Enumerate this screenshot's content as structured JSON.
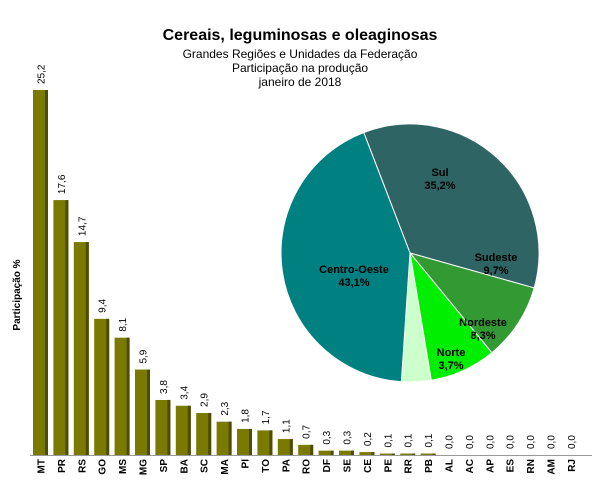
{
  "chart_data": [
    {
      "type": "bar",
      "title": "Cereais, leguminosas e oleaginosas",
      "subtitle": [
        "Grandes Regiões e Unidades da Federação",
        "Participação na produção",
        "janeiro de 2018"
      ],
      "ylabel": "Participação %",
      "xlabel": "",
      "ylim": [
        0,
        25.2
      ],
      "grid": false,
      "color": "#7a7a00",
      "categories": [
        "MT",
        "PR",
        "RS",
        "GO",
        "MS",
        "MG",
        "SP",
        "BA",
        "SC",
        "MA",
        "PI",
        "TO",
        "PA",
        "RO",
        "DF",
        "SE",
        "CE",
        "PE",
        "RR",
        "PB",
        "AL",
        "AC",
        "AP",
        "ES",
        "RN",
        "AM",
        "RJ"
      ],
      "values": [
        25.2,
        17.6,
        14.7,
        9.4,
        8.1,
        5.9,
        3.8,
        3.4,
        2.9,
        2.3,
        1.8,
        1.7,
        1.1,
        0.7,
        0.3,
        0.3,
        0.2,
        0.1,
        0.1,
        0.1,
        0.0,
        0.0,
        0.0,
        0.0,
        0.0,
        0.0,
        0.0
      ],
      "value_labels": [
        "25,2",
        "17,6",
        "14,7",
        "9,4",
        "8,1",
        "5,9",
        "3,8",
        "3,4",
        "2,9",
        "2,3",
        "1,8",
        "1,7",
        "1,1",
        "0,7",
        "0,3",
        "0,3",
        "0,2",
        "0,1",
        "0,1",
        "0,1",
        "0,0",
        "0,0",
        "0,0",
        "0,0",
        "0,0",
        "0,0",
        "0,0"
      ]
    },
    {
      "type": "pie",
      "slices": [
        {
          "name": "Sul",
          "value": 35.2,
          "label": "35,2%",
          "color": "#2e6464"
        },
        {
          "name": "Sudeste",
          "value": 9.7,
          "label": "9,7%",
          "color": "#339933"
        },
        {
          "name": "Nordeste",
          "value": 8.3,
          "label": "8,3%",
          "color": "#00ee00"
        },
        {
          "name": "Norte",
          "value": 3.7,
          "label": "3,7%",
          "color": "#ccffcc"
        },
        {
          "name": "Centro-Oeste",
          "value": 43.1,
          "label": "43,1%",
          "color": "#008080"
        }
      ]
    }
  ]
}
